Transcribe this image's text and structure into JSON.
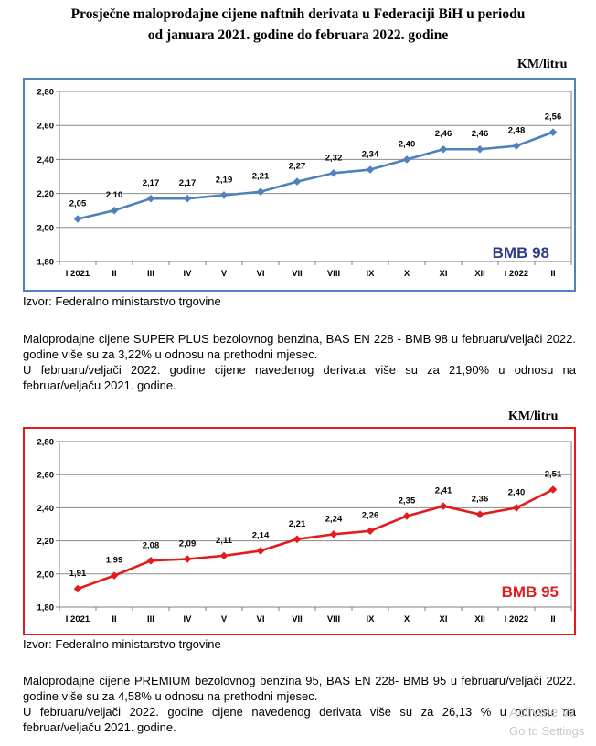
{
  "page": {
    "title_line1": "Prosječne maloprodajne cijene naftnih derivata u Federaciji BiH u periodu",
    "title_line2": "od januara 2021. godine do februara 2022. godine"
  },
  "chart_data": [
    {
      "type": "line",
      "unit": "KM/litru",
      "label": "BMB 98",
      "color": "#4f81bd",
      "label_color": "#2e3b8c",
      "categories": [
        "I 2021",
        "II",
        "III",
        "IV",
        "V",
        "VI",
        "VII",
        "VIII",
        "IX",
        "X",
        "XI",
        "XII",
        "I 2022",
        "II"
      ],
      "values": [
        2.05,
        2.1,
        2.17,
        2.17,
        2.19,
        2.21,
        2.27,
        2.32,
        2.34,
        2.4,
        2.46,
        2.46,
        2.48,
        2.56
      ],
      "value_labels": [
        "2,05",
        "2,10",
        "2,17",
        "2,17",
        "2,19",
        "2,21",
        "2,27",
        "2,32",
        "2,34",
        "2,40",
        "2,46",
        "2,46",
        "2,48",
        "2,56"
      ],
      "yticks": [
        "2,80",
        "2,60",
        "2,40",
        "2,20",
        "2,00",
        "1,80"
      ],
      "ylim": [
        1.8,
        2.8
      ],
      "source": "Izvor: Federalno ministarstvo trgovine",
      "paragraph1": "Maloprodajne cijene SUPER PLUS bezolovnog benzina, BAS EN 228 - BMB 98 u februaru/veljači 2022. godine više su za 3,22% u odnosu na prethodni mjesec.",
      "paragraph2": "U februaru/veljači 2022. godine cijene navedenog derivata više su za 21,90% u odnosu na februar/veljaču 2021. godine."
    },
    {
      "type": "line",
      "unit": "KM/litru",
      "label": "BMB 95",
      "color": "#e41b1b",
      "label_color": "#e41b1b",
      "categories": [
        "I 2021",
        "II",
        "III",
        "IV",
        "V",
        "VI",
        "VII",
        "VIII",
        "IX",
        "X",
        "XI",
        "XII",
        "I 2022",
        "II"
      ],
      "values": [
        1.91,
        1.99,
        2.08,
        2.09,
        2.11,
        2.14,
        2.21,
        2.24,
        2.26,
        2.35,
        2.41,
        2.36,
        2.4,
        2.51
      ],
      "value_labels": [
        "1,91",
        "1,99",
        "2,08",
        "2,09",
        "2,11",
        "2,14",
        "2,21",
        "2,24",
        "2,26",
        "2,35",
        "2,41",
        "2,36",
        "2,40",
        "2,51"
      ],
      "yticks": [
        "2,80",
        "2,60",
        "2,40",
        "2,20",
        "2,00",
        "1,80"
      ],
      "ylim": [
        1.8,
        2.8
      ],
      "source": "Izvor: Federalno ministarstvo trgovine",
      "paragraph1": "Maloprodajne cijene PREMIUM bezolovnog benzina 95, BAS EN 228- BMB 95 u februaru/veljači 2022. godine više su za 4,58% u odnosu na prethodni mjesec.",
      "paragraph2": "U februaru/veljači 2022. godine cijene navedenog derivata više su za 26,13 % u odnosu na februar/veljaču 2021. godine."
    }
  ],
  "watermark": {
    "line1": "Activate W",
    "line2": "Go to Settings"
  }
}
